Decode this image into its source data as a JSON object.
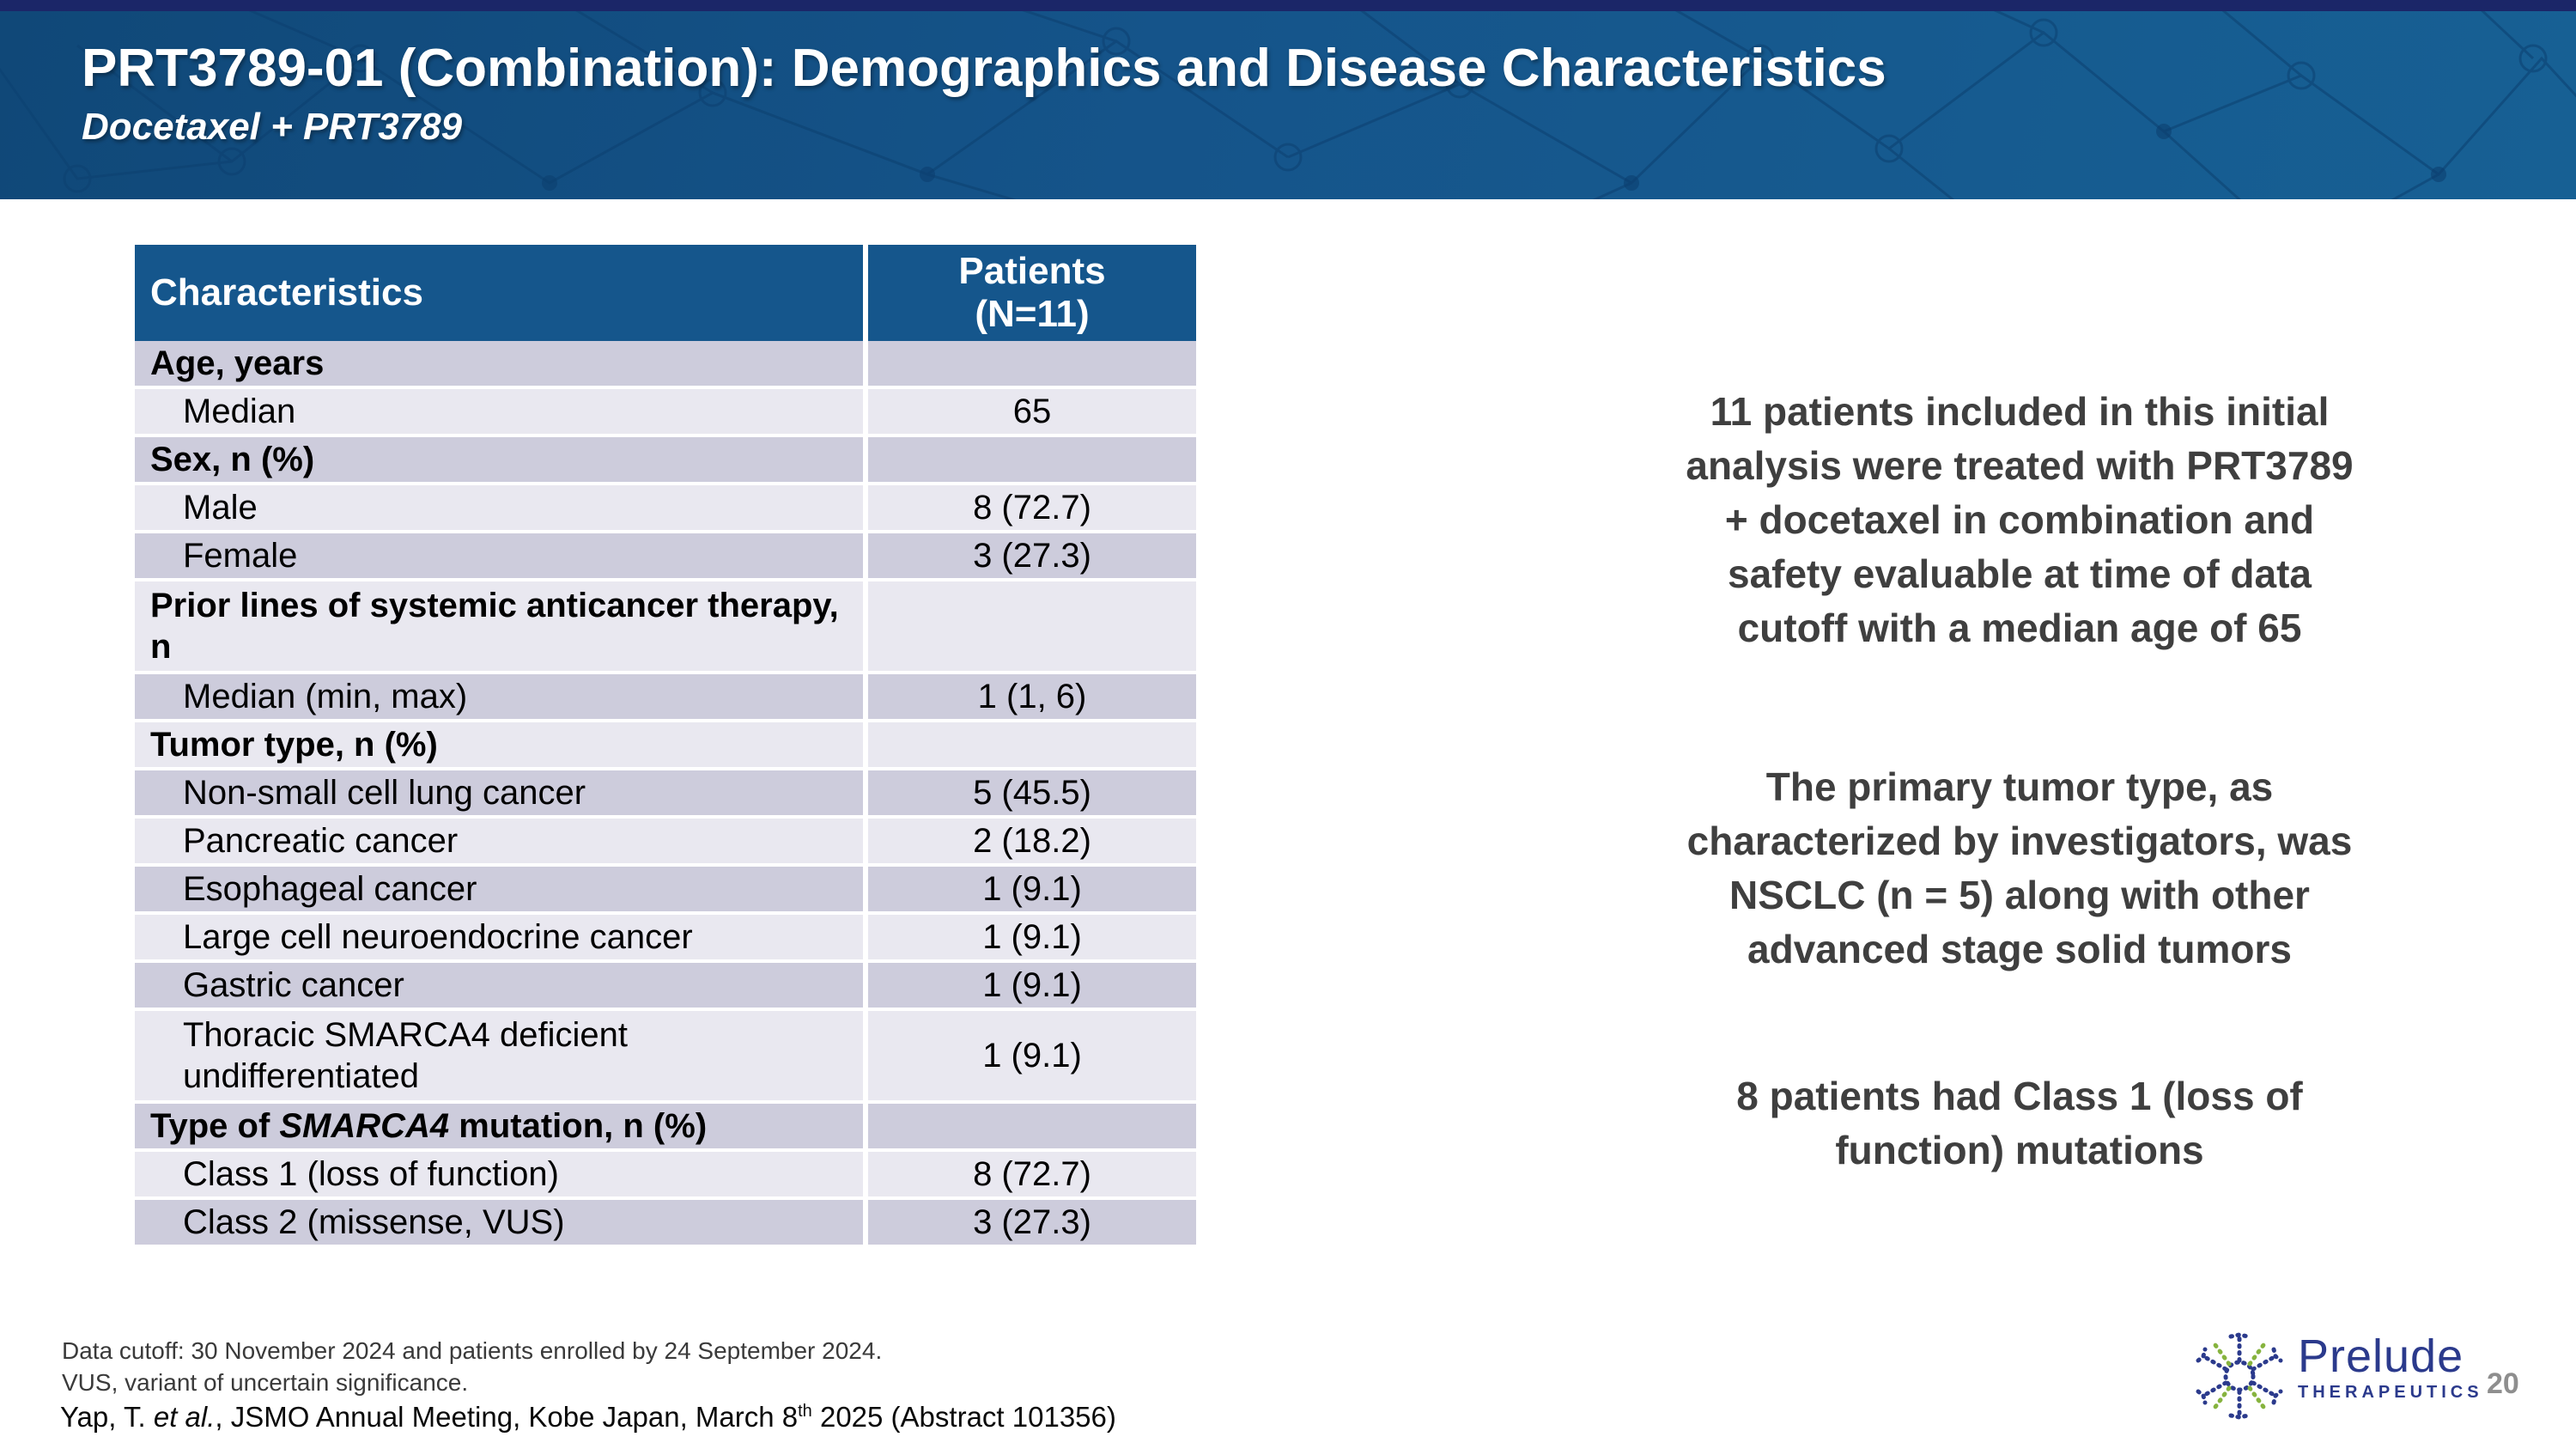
{
  "header": {
    "title": "PRT3789-01 (Combination): Demographics and Disease Characteristics",
    "subtitle": "Docetaxel + PRT3789"
  },
  "table": {
    "col1_header": "Characteristics",
    "col2_header_line1": "Patients",
    "col2_header_line2": "(N=11)",
    "rows": [
      {
        "type": "category",
        "label": "Age, years",
        "value": ""
      },
      {
        "type": "item",
        "label": "Median",
        "value": "65"
      },
      {
        "type": "category",
        "label": "Sex, n (%)",
        "value": ""
      },
      {
        "type": "item",
        "label": "Male",
        "value": "8 (72.7)"
      },
      {
        "type": "item",
        "label": "Female",
        "value": "3 (27.3)"
      },
      {
        "type": "category",
        "label": "Prior lines of systemic anticancer therapy, n",
        "value": "",
        "tall": true
      },
      {
        "type": "item",
        "label": "Median (min, max)",
        "value": "1 (1, 6)"
      },
      {
        "type": "category",
        "label": "Tumor type, n (%)",
        "value": ""
      },
      {
        "type": "item",
        "label": "Non-small cell lung cancer",
        "value": "5 (45.5)"
      },
      {
        "type": "item",
        "label": "Pancreatic cancer",
        "value": "2 (18.2)"
      },
      {
        "type": "item",
        "label": "Esophageal cancer",
        "value": "1 (9.1)"
      },
      {
        "type": "item",
        "label": "Large cell neuroendocrine cancer",
        "value": "1 (9.1)"
      },
      {
        "type": "item",
        "label": "Gastric cancer",
        "value": "1 (9.1)"
      },
      {
        "type": "item",
        "label": "Thoracic SMARCA4 deficient undifferentiated",
        "value": "1 (9.1)",
        "tall": true
      },
      {
        "type": "category",
        "label_parts": [
          {
            "t": "Type of "
          },
          {
            "t": "SMARCA4",
            "i": true
          },
          {
            "t": " mutation, n (%)"
          }
        ],
        "value": ""
      },
      {
        "type": "item",
        "label": "Class 1 (loss of function)",
        "value": "8 (72.7)"
      },
      {
        "type": "item",
        "label": "Class 2 (missense, VUS)",
        "value": "3 (27.3)"
      }
    ]
  },
  "statements": [
    [
      "11 patients included in this initial",
      "analysis were treated with PRT3789",
      "+ docetaxel in combination and",
      "safety evaluable at time of data",
      "cutoff with a median age of 65"
    ],
    [
      "The primary tumor type, as",
      "characterized by investigators, was",
      "NSCLC (n = 5) along with other",
      "advanced stage solid tumors"
    ],
    [
      "8 patients had Class 1 (loss of",
      "function) mutations"
    ]
  ],
  "footnotes": {
    "line1": "Data cutoff: 30 November 2024 and patients enrolled by 24 September 2024.",
    "line2": "VUS, variant of uncertain significance.",
    "citation_parts": [
      {
        "t": "Yap, T. ",
        "s": "normal"
      },
      {
        "t": "et al.",
        "s": "italic"
      },
      {
        "t": ", JSMO Annual Meeting, Kobe Japan, March 8",
        "s": "normal"
      },
      {
        "t": "th",
        "s": "sup"
      },
      {
        "t": " 2025 (Abstract 101356)",
        "s": "normal"
      }
    ]
  },
  "logo": {
    "name": "Prelude",
    "subtext": "THERAPEUTICS"
  },
  "page_number": "20",
  "colors": {
    "banner_blue": "#15548a",
    "top_strip_navy": "#1b2668",
    "table_header_blue": "#15568c",
    "row_dark": "#cdccdc",
    "row_light": "#e9e8f0",
    "statement_gray": "#3f3f3f",
    "logo_blue": "#2b3a8c",
    "logo_green": "#86b33e",
    "page_number_gray": "#8e8e8e"
  }
}
